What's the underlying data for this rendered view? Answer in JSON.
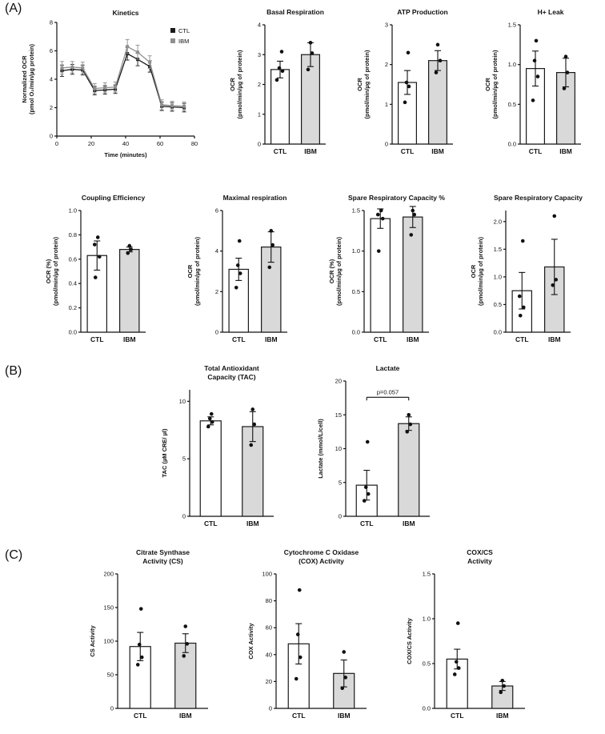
{
  "panels": {
    "a": {
      "label": "(A)"
    },
    "b": {
      "label": "(B)"
    },
    "c": {
      "label": "(C)"
    }
  },
  "colors": {
    "ctl_fill": "#ffffff",
    "ibm_fill": "#d9d9d9",
    "stroke": "#1a1a1a",
    "ctl_line": "#1a1a1a",
    "ibm_line": "#8f8f8f"
  },
  "chart_data": [
    {
      "id": "kinetics",
      "type": "line",
      "title_lines": [
        "Kinetics"
      ],
      "xlabel": "Time (minutes)",
      "ylabel_lines": [
        "Normalized OCR",
        "(pmol O₂/min/µg protein)"
      ],
      "xlim": [
        0,
        80
      ],
      "ylim": [
        0,
        8
      ],
      "xticks": [
        "0",
        "20",
        "40",
        "60",
        "80"
      ],
      "yticks": [
        "0",
        "2",
        "4",
        "6",
        "8"
      ],
      "x": [
        3,
        9,
        15,
        22,
        28,
        34,
        41,
        47,
        54,
        61,
        67,
        74
      ],
      "series": [
        {
          "name": "CTL",
          "y": [
            4.6,
            4.7,
            4.65,
            3.2,
            3.25,
            3.3,
            5.8,
            5.4,
            4.9,
            2.1,
            2.05,
            2.0
          ],
          "err": [
            0.4,
            0.35,
            0.35,
            0.3,
            0.3,
            0.3,
            0.45,
            0.45,
            0.4,
            0.3,
            0.3,
            0.3
          ]
        },
        {
          "name": "IBM",
          "y": [
            4.8,
            4.85,
            4.8,
            3.35,
            3.4,
            3.45,
            6.3,
            5.9,
            5.2,
            2.2,
            2.15,
            2.1
          ],
          "err": [
            0.45,
            0.4,
            0.4,
            0.35,
            0.35,
            0.35,
            0.5,
            0.5,
            0.45,
            0.35,
            0.3,
            0.3
          ]
        }
      ],
      "legend_position": "top-right"
    },
    {
      "id": "basal-respiration",
      "type": "bar",
      "title_lines": [
        "Basal Respiration"
      ],
      "ylabel_lines": [
        "OCR",
        "(pmol/min/µg of protein)"
      ],
      "ylim": [
        0,
        4
      ],
      "yticks": [
        "0",
        "1",
        "2",
        "3",
        "4"
      ],
      "categories": [
        "CTL",
        "IBM"
      ],
      "values": [
        2.5,
        3.0
      ],
      "errors": [
        0.28,
        0.4
      ],
      "points": [
        [
          [
            2.15,
            -4
          ],
          [
            2.45,
            3
          ],
          [
            2.55,
            -1
          ],
          [
            3.1,
            2
          ]
        ],
        [
          [
            2.5,
            -3
          ],
          [
            3.05,
            2
          ],
          [
            3.4,
            0
          ]
        ]
      ]
    },
    {
      "id": "atp-production",
      "type": "bar",
      "title_lines": [
        "ATP Production"
      ],
      "ylabel_lines": [
        "OCR",
        "(pmol/min/µg of protein)"
      ],
      "ylim": [
        0,
        3
      ],
      "yticks": [
        "0",
        "1",
        "2",
        "3"
      ],
      "categories": [
        "CTL",
        "IBM"
      ],
      "values": [
        1.55,
        2.1
      ],
      "errors": [
        0.3,
        0.25
      ],
      "points": [
        [
          [
            1.05,
            -3
          ],
          [
            1.45,
            2
          ],
          [
            1.55,
            -1
          ],
          [
            2.3,
            1
          ]
        ],
        [
          [
            1.8,
            -2
          ],
          [
            2.1,
            3
          ],
          [
            2.5,
            0
          ]
        ]
      ]
    },
    {
      "id": "h-leak",
      "type": "bar",
      "title_lines": [
        "H+ Leak"
      ],
      "ylabel_lines": [
        "OCR",
        "(pmol/min/µg of protein)"
      ],
      "ylim": [
        0,
        1.5
      ],
      "yticks": [
        "0.0",
        "0.5",
        "1.0",
        "1.5"
      ],
      "categories": [
        "CTL",
        "IBM"
      ],
      "values": [
        0.95,
        0.9
      ],
      "errors": [
        0.22,
        0.18
      ],
      "points": [
        [
          [
            0.55,
            -3
          ],
          [
            0.85,
            3
          ],
          [
            1.05,
            -1
          ],
          [
            1.3,
            1
          ]
        ],
        [
          [
            0.7,
            -2
          ],
          [
            0.9,
            2
          ],
          [
            1.1,
            0
          ]
        ]
      ]
    },
    {
      "id": "coupling-efficiency",
      "type": "bar",
      "title_lines": [
        "Coupling Efficiency"
      ],
      "ylabel_lines": [
        "OCR (%)",
        "(pmol/min/µg of protein)"
      ],
      "ylim": [
        0,
        1.0
      ],
      "yticks": [
        "0.0",
        "0.2",
        "0.4",
        "0.6",
        "0.8",
        "1.0"
      ],
      "categories": [
        "CTL",
        "IBM"
      ],
      "values": [
        0.63,
        0.68
      ],
      "errors": [
        0.12,
        0.02
      ],
      "points": [
        [
          [
            0.45,
            -2
          ],
          [
            0.62,
            3
          ],
          [
            0.72,
            -3
          ],
          [
            0.78,
            1
          ]
        ],
        [
          [
            0.65,
            -2
          ],
          [
            0.68,
            2
          ],
          [
            0.71,
            0
          ]
        ]
      ]
    },
    {
      "id": "maximal-respiration",
      "type": "bar",
      "title_lines": [
        "Maximal respiration"
      ],
      "ylabel_lines": [
        "OCR",
        "(pmol/min/µg of protein)"
      ],
      "ylim": [
        0,
        6
      ],
      "yticks": [
        "0",
        "2",
        "4",
        "6"
      ],
      "categories": [
        "CTL",
        "IBM"
      ],
      "values": [
        3.1,
        4.2
      ],
      "errors": [
        0.55,
        0.75
      ],
      "points": [
        [
          [
            2.2,
            -3
          ],
          [
            2.9,
            2
          ],
          [
            3.3,
            -1
          ],
          [
            4.5,
            1
          ]
        ],
        [
          [
            3.2,
            -2
          ],
          [
            4.3,
            2
          ],
          [
            5.0,
            0
          ]
        ]
      ]
    },
    {
      "id": "spare-respiratory-capacity-pct",
      "type": "bar",
      "title_lines": [
        "Spare Respiratory Capacity %"
      ],
      "ylabel_lines": [
        "OCR (%)",
        "(pmol/min/µg of protein)"
      ],
      "ylim": [
        0,
        1.5
      ],
      "yticks": [
        "0.0",
        "0.5",
        "1.0",
        "1.5"
      ],
      "categories": [
        "CTL",
        "IBM"
      ],
      "values": [
        1.4,
        1.42
      ],
      "errors": [
        0.12,
        0.13
      ],
      "points": [
        [
          [
            1.0,
            -2
          ],
          [
            1.4,
            3
          ],
          [
            1.45,
            -3
          ],
          [
            1.5,
            1
          ]
        ],
        [
          [
            1.2,
            -2
          ],
          [
            1.45,
            2
          ],
          [
            1.5,
            0
          ]
        ]
      ]
    },
    {
      "id": "spare-respiratory-capacity",
      "type": "bar",
      "title_lines": [
        "Spare Respiratory Capacity"
      ],
      "ylabel_lines": [
        "OCR",
        "(pmol/min/µg of protein)"
      ],
      "ylim": [
        0,
        2.2
      ],
      "yticks": [
        "0.0",
        "0.5",
        "1.0",
        "1.5",
        "2.0"
      ],
      "categories": [
        "CTL",
        "IBM"
      ],
      "values": [
        0.75,
        1.18
      ],
      "errors": [
        0.33,
        0.5
      ],
      "points": [
        [
          [
            0.3,
            -2
          ],
          [
            0.45,
            2
          ],
          [
            0.65,
            -3
          ],
          [
            1.65,
            1
          ]
        ],
        [
          [
            0.85,
            -2
          ],
          [
            0.95,
            2
          ],
          [
            2.1,
            0
          ]
        ]
      ]
    },
    {
      "id": "tac",
      "type": "bar",
      "title_lines": [
        "Total Antioxidant",
        "Capacity (TAC)"
      ],
      "ylabel_lines": [
        "TAC (µM CRE/ µl)"
      ],
      "ylim": [
        0,
        11
      ],
      "yticks": [
        "0",
        "5",
        "10"
      ],
      "categories": [
        "CTL",
        "IBM"
      ],
      "values": [
        8.3,
        7.8
      ],
      "errors": [
        0.35,
        1.3
      ],
      "points": [
        [
          [
            7.8,
            -3
          ],
          [
            8.2,
            2
          ],
          [
            8.5,
            -1
          ],
          [
            8.9,
            1
          ]
        ],
        [
          [
            6.2,
            -2
          ],
          [
            8.0,
            2
          ],
          [
            9.3,
            0
          ]
        ]
      ]
    },
    {
      "id": "lactate",
      "type": "bar",
      "title_lines": [
        "Lactate"
      ],
      "ylabel_lines": [
        "Lactate (mmol/L/cell)"
      ],
      "ylim": [
        0,
        20
      ],
      "yticks": [
        "0",
        "5",
        "10",
        "15",
        "20"
      ],
      "categories": [
        "CTL",
        "IBM"
      ],
      "values": [
        4.6,
        13.7
      ],
      "errors": [
        2.2,
        1.0
      ],
      "points": [
        [
          [
            2.3,
            -3
          ],
          [
            3.3,
            2
          ],
          [
            4.3,
            -1
          ],
          [
            11.0,
            1
          ]
        ],
        [
          [
            12.5,
            -2
          ],
          [
            13.6,
            2
          ],
          [
            15.0,
            0
          ]
        ]
      ],
      "annotation": {
        "text": "p=0.057",
        "y": 17.6
      }
    },
    {
      "id": "cs-activity",
      "type": "bar",
      "title_lines": [
        "Citrate Synthase",
        "Activity (CS)"
      ],
      "ylabel_lines": [
        "CS Activity"
      ],
      "ylim": [
        0,
        200
      ],
      "yticks": [
        "0",
        "50",
        "100",
        "150",
        "200"
      ],
      "categories": [
        "CTL",
        "IBM"
      ],
      "values": [
        92,
        97
      ],
      "errors": [
        21,
        14
      ],
      "points": [
        [
          [
            65,
            -3
          ],
          [
            76,
            2
          ],
          [
            95,
            -1
          ],
          [
            148,
            1
          ]
        ],
        [
          [
            78,
            -2
          ],
          [
            96,
            2
          ],
          [
            122,
            0
          ]
        ]
      ]
    },
    {
      "id": "cox-activity",
      "type": "bar",
      "title_lines": [
        "Cytochrome C Oxidase",
        "(COX) Activity"
      ],
      "ylabel_lines": [
        "COX Activity"
      ],
      "ylim": [
        0,
        100
      ],
      "yticks": [
        "0",
        "20",
        "40",
        "60",
        "80",
        "100"
      ],
      "categories": [
        "CTL",
        "IBM"
      ],
      "values": [
        48,
        26
      ],
      "errors": [
        15,
        10
      ],
      "points": [
        [
          [
            22,
            -3
          ],
          [
            38,
            2
          ],
          [
            55,
            -1
          ],
          [
            88,
            1
          ]
        ],
        [
          [
            15,
            -2
          ],
          [
            23,
            2
          ],
          [
            42,
            0
          ]
        ]
      ]
    },
    {
      "id": "cox-cs-activity",
      "type": "bar",
      "title_lines": [
        "COX/CS",
        "Activity"
      ],
      "ylabel_lines": [
        "COX/CS Activity"
      ],
      "ylim": [
        0,
        1.5
      ],
      "yticks": [
        "0.0",
        "0.5",
        "1.0",
        "1.5"
      ],
      "categories": [
        "CTL",
        "IBM"
      ],
      "values": [
        0.55,
        0.25
      ],
      "errors": [
        0.11,
        0.05
      ],
      "points": [
        [
          [
            0.38,
            -3
          ],
          [
            0.45,
            2
          ],
          [
            0.52,
            -1
          ],
          [
            0.95,
            1
          ]
        ],
        [
          [
            0.18,
            -2
          ],
          [
            0.25,
            2
          ],
          [
            0.31,
            0
          ]
        ]
      ]
    }
  ]
}
